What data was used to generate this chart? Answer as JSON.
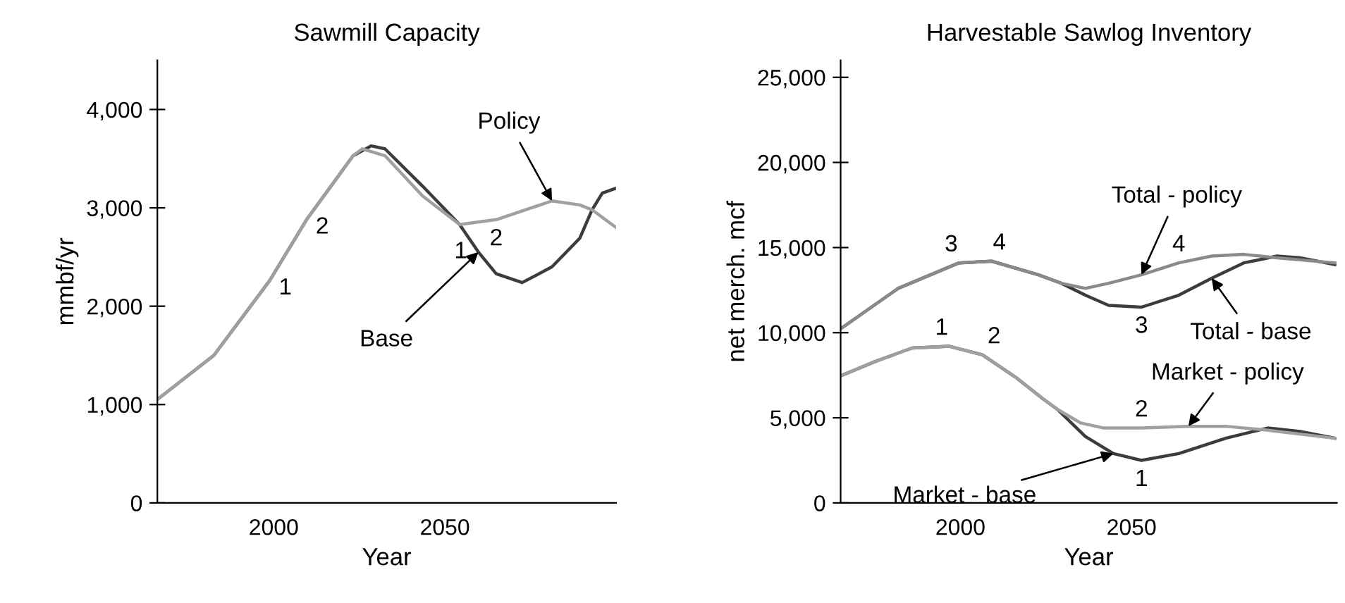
{
  "chart_data": [
    {
      "type": "line",
      "title": "Sawmill Capacity",
      "xlabel": "Year",
      "ylabel": "mmbf/yr",
      "xlim": [
        1966,
        2100
      ],
      "ylim": [
        0,
        4500
      ],
      "xticks": [
        2000,
        2050
      ],
      "yticks": [
        0,
        {
          "value": 1000,
          "label": "1,000"
        },
        {
          "value": 2000,
          "label": "2,000"
        },
        {
          "value": 3000,
          "label": "3,000"
        },
        {
          "value": 4000,
          "label": "4,000"
        }
      ],
      "series": [
        {
          "color": "#3c3c3c",
          "x": [
            1966.3,
            1982.5,
            1998.8,
            2009.6,
            2023.2,
            2028.5,
            2032.5,
            2043.5,
            2054.3,
            2059.8,
            2065,
            2072.6,
            2081.3,
            2089.4,
            2093,
            2096,
            2100
          ],
          "values": [
            1060,
            1500,
            2260,
            2880,
            3530,
            3630,
            3600,
            3220,
            2830,
            2550,
            2330,
            2240,
            2400,
            2690,
            2980,
            3150,
            3200
          ]
        },
        {
          "color": "#a0a0a0",
          "x": [
            1966.3,
            1982.5,
            1998.8,
            2009.6,
            2023.2,
            2025.9,
            2032.5,
            2043.5,
            2054.3,
            2065,
            2081.3,
            2089.4,
            2093,
            2100
          ],
          "values": [
            1060,
            1500,
            2260,
            2880,
            3530,
            3600,
            3530,
            3120,
            2830,
            2880,
            3070,
            3030,
            2980,
            2800
          ]
        }
      ],
      "annotations": [
        {
          "text": "Policy",
          "x": 2081.3,
          "y": 3070
        },
        {
          "text": "Base",
          "x": 2059.8,
          "y": 2550
        },
        {
          "text": "1",
          "x": 1998.8,
          "y": 2260
        },
        {
          "text": "2",
          "x": 2009.6,
          "y": 2880
        },
        {
          "text": "1",
          "x": 2059.8,
          "y": 2550
        },
        {
          "text": "2",
          "x": 2065,
          "y": 2880
        }
      ]
    },
    {
      "type": "line",
      "title": "Harvestable Sawlog Inventory",
      "xlabel": "Year",
      "ylabel": "net merch. mcf",
      "xlim": [
        1965,
        2110
      ],
      "ylim": [
        0,
        26000
      ],
      "xticks": [
        2000,
        2050
      ],
      "yticks": [
        0,
        {
          "value": 5000,
          "label": "5,000"
        },
        {
          "value": 10000,
          "label": "10,000"
        },
        {
          "value": 15000,
          "label": "15,000"
        },
        {
          "value": 20000,
          "label": "20,000"
        },
        {
          "value": 25000,
          "label": "25,000"
        }
      ],
      "series": [
        {
          "color": "#3c3c3c",
          "x": [
            1965.5,
            1975,
            1985.9,
            1996.8,
            2006.4,
            2016,
            2024.2,
            2028.3,
            2036.5,
            2044.7,
            2052.9,
            2063.8,
            2077.5,
            2089.8,
            2099.2,
            2109.4
          ],
          "values": [
            7500,
            8300,
            9100,
            9200,
            8700,
            7400,
            6100,
            5500,
            3900,
            2900,
            2500,
            2900,
            3800,
            4400,
            4200,
            3800
          ]
        },
        {
          "color": "#a0a0a0",
          "x": [
            1965.5,
            1975,
            1985.9,
            1996.8,
            2006.4,
            2016,
            2024.2,
            2028.3,
            2035.1,
            2041.9,
            2052.9,
            2066.6,
            2077.5,
            2088.4,
            2109.4
          ],
          "values": [
            7500,
            8300,
            9100,
            9200,
            8700,
            7400,
            6100,
            5500,
            4700,
            4400,
            4400,
            4500,
            4500,
            4300,
            3800
          ]
        },
        {
          "color": "#3c3c3c",
          "x": [
            1965.5,
            1981.8,
            1999.6,
            2009.1,
            2022.8,
            2029.5,
            2036.5,
            2043.3,
            2052.9,
            2063.8,
            2073.4,
            2082.8,
            2092.5,
            2099.2,
            2109.4
          ],
          "values": [
            10300,
            12600,
            14100,
            14200,
            13400,
            12900,
            12200,
            11600,
            11500,
            12200,
            13200,
            14100,
            14500,
            14400,
            14000
          ]
        },
        {
          "color": "#8a8a8a",
          "x": [
            1965.5,
            1981.8,
            1999.6,
            2009.1,
            2022.8,
            2029.5,
            2036.5,
            2043.3,
            2052.9,
            2063.8,
            2073.4,
            2082.8,
            2092.5,
            2109.4
          ],
          "values": [
            10300,
            12600,
            14100,
            14200,
            13400,
            12900,
            12600,
            12900,
            13400,
            14100,
            14500,
            14600,
            14400,
            14100
          ]
        }
      ],
      "annotations": [
        {
          "text": "Total - policy",
          "x": 2052.9,
          "y": 13400
        },
        {
          "text": "Total - base",
          "x": 2073.4,
          "y": 13200
        },
        {
          "text": "Market - policy",
          "x": 2066.6,
          "y": 4500
        },
        {
          "text": "Market - base",
          "x": 2044.7,
          "y": 2900
        },
        {
          "text": "3",
          "x": 1999.6,
          "y": 14100
        },
        {
          "text": "4",
          "x": 2009.1,
          "y": 14200
        },
        {
          "text": "1",
          "x": 1996.8,
          "y": 9200
        },
        {
          "text": "2",
          "x": 2006.4,
          "y": 8700
        },
        {
          "text": "4",
          "x": 2063.8,
          "y": 14100
        },
        {
          "text": "3",
          "x": 2052.9,
          "y": 11500
        },
        {
          "text": "2",
          "x": 2052.9,
          "y": 4400
        },
        {
          "text": "1",
          "x": 2052.9,
          "y": 2500
        }
      ]
    }
  ]
}
